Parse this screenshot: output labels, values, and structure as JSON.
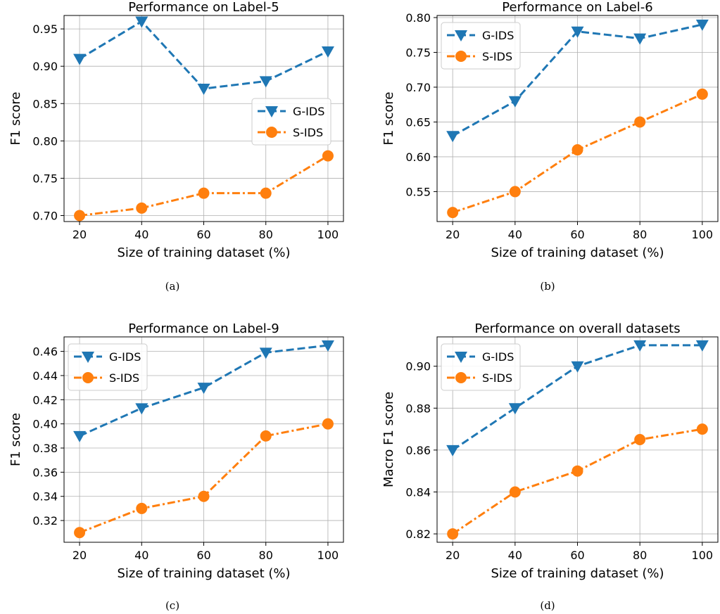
{
  "colors": {
    "g_ids": "#1f77b4",
    "s_ids": "#ff7f0e",
    "grid": "#b0b0b0"
  },
  "chart_data": [
    {
      "type": "line",
      "panel_label": "(a)",
      "title": "Performance on Label-5",
      "xlabel": "Size of training dataset (%)",
      "ylabel": "F1 score",
      "x": [
        20,
        40,
        60,
        80,
        100
      ],
      "xticks": [
        "20",
        "40",
        "60",
        "80",
        "100"
      ],
      "yticks": [
        "0.70",
        "0.75",
        "0.80",
        "0.85",
        "0.90",
        "0.95"
      ],
      "ylim": [
        0.692,
        0.968
      ],
      "grid": true,
      "legend_position": "center-right",
      "series": [
        {
          "name": "G-IDS",
          "values": [
            0.91,
            0.96,
            0.87,
            0.88,
            0.92
          ],
          "line_style": "dashed",
          "marker": "triangle-down"
        },
        {
          "name": "S-IDS",
          "values": [
            0.7,
            0.71,
            0.73,
            0.73,
            0.78
          ],
          "line_style": "dash-dot",
          "marker": "circle"
        }
      ]
    },
    {
      "type": "line",
      "panel_label": "(b)",
      "title": "Performance on Label-6",
      "xlabel": "Size of training dataset (%)",
      "ylabel": "F1 score",
      "x": [
        20,
        40,
        60,
        80,
        100
      ],
      "xticks": [
        "20",
        "40",
        "60",
        "80",
        "100"
      ],
      "yticks": [
        "0.55",
        "0.60",
        "0.65",
        "0.70",
        "0.75",
        "0.80"
      ],
      "ylim": [
        0.507,
        0.803
      ],
      "grid": true,
      "legend_position": "top-left",
      "series": [
        {
          "name": "G-IDS",
          "values": [
            0.63,
            0.68,
            0.78,
            0.77,
            0.79
          ],
          "line_style": "dashed",
          "marker": "triangle-down"
        },
        {
          "name": "S-IDS",
          "values": [
            0.52,
            0.55,
            0.61,
            0.65,
            0.69
          ],
          "line_style": "dash-dot",
          "marker": "circle"
        }
      ]
    },
    {
      "type": "line",
      "panel_label": "(c)",
      "title": "Performance on Label-9",
      "xlabel": "Size of training dataset (%)",
      "ylabel": "F1 score",
      "x": [
        20,
        40,
        60,
        80,
        100
      ],
      "xticks": [
        "20",
        "40",
        "60",
        "80",
        "100"
      ],
      "yticks": [
        "0.32",
        "0.34",
        "0.36",
        "0.38",
        "0.40",
        "0.42",
        "0.44",
        "0.46"
      ],
      "ylim": [
        0.302,
        0.472
      ],
      "grid": true,
      "legend_position": "top-left",
      "series": [
        {
          "name": "G-IDS",
          "values": [
            0.39,
            0.413,
            0.43,
            0.459,
            0.465
          ],
          "line_style": "dashed",
          "marker": "triangle-down"
        },
        {
          "name": "S-IDS",
          "values": [
            0.31,
            0.33,
            0.34,
            0.39,
            0.4
          ],
          "line_style": "dash-dot",
          "marker": "circle"
        }
      ]
    },
    {
      "type": "line",
      "panel_label": "(d)",
      "title": "Performance on overall datasets",
      "xlabel": "Size of training dataset (%)",
      "ylabel": "Macro F1 score",
      "x": [
        20,
        40,
        60,
        80,
        100
      ],
      "xticks": [
        "20",
        "40",
        "60",
        "80",
        "100"
      ],
      "yticks": [
        "0.82",
        "0.84",
        "0.86",
        "0.88",
        "0.90"
      ],
      "ylim": [
        0.816,
        0.914
      ],
      "grid": true,
      "legend_position": "top-left",
      "series": [
        {
          "name": "G-IDS",
          "values": [
            0.86,
            0.88,
            0.9,
            0.91,
            0.91
          ],
          "line_style": "dashed",
          "marker": "triangle-down"
        },
        {
          "name": "S-IDS",
          "values": [
            0.82,
            0.84,
            0.85,
            0.865,
            0.87
          ],
          "line_style": "dash-dot",
          "marker": "circle"
        }
      ]
    }
  ]
}
